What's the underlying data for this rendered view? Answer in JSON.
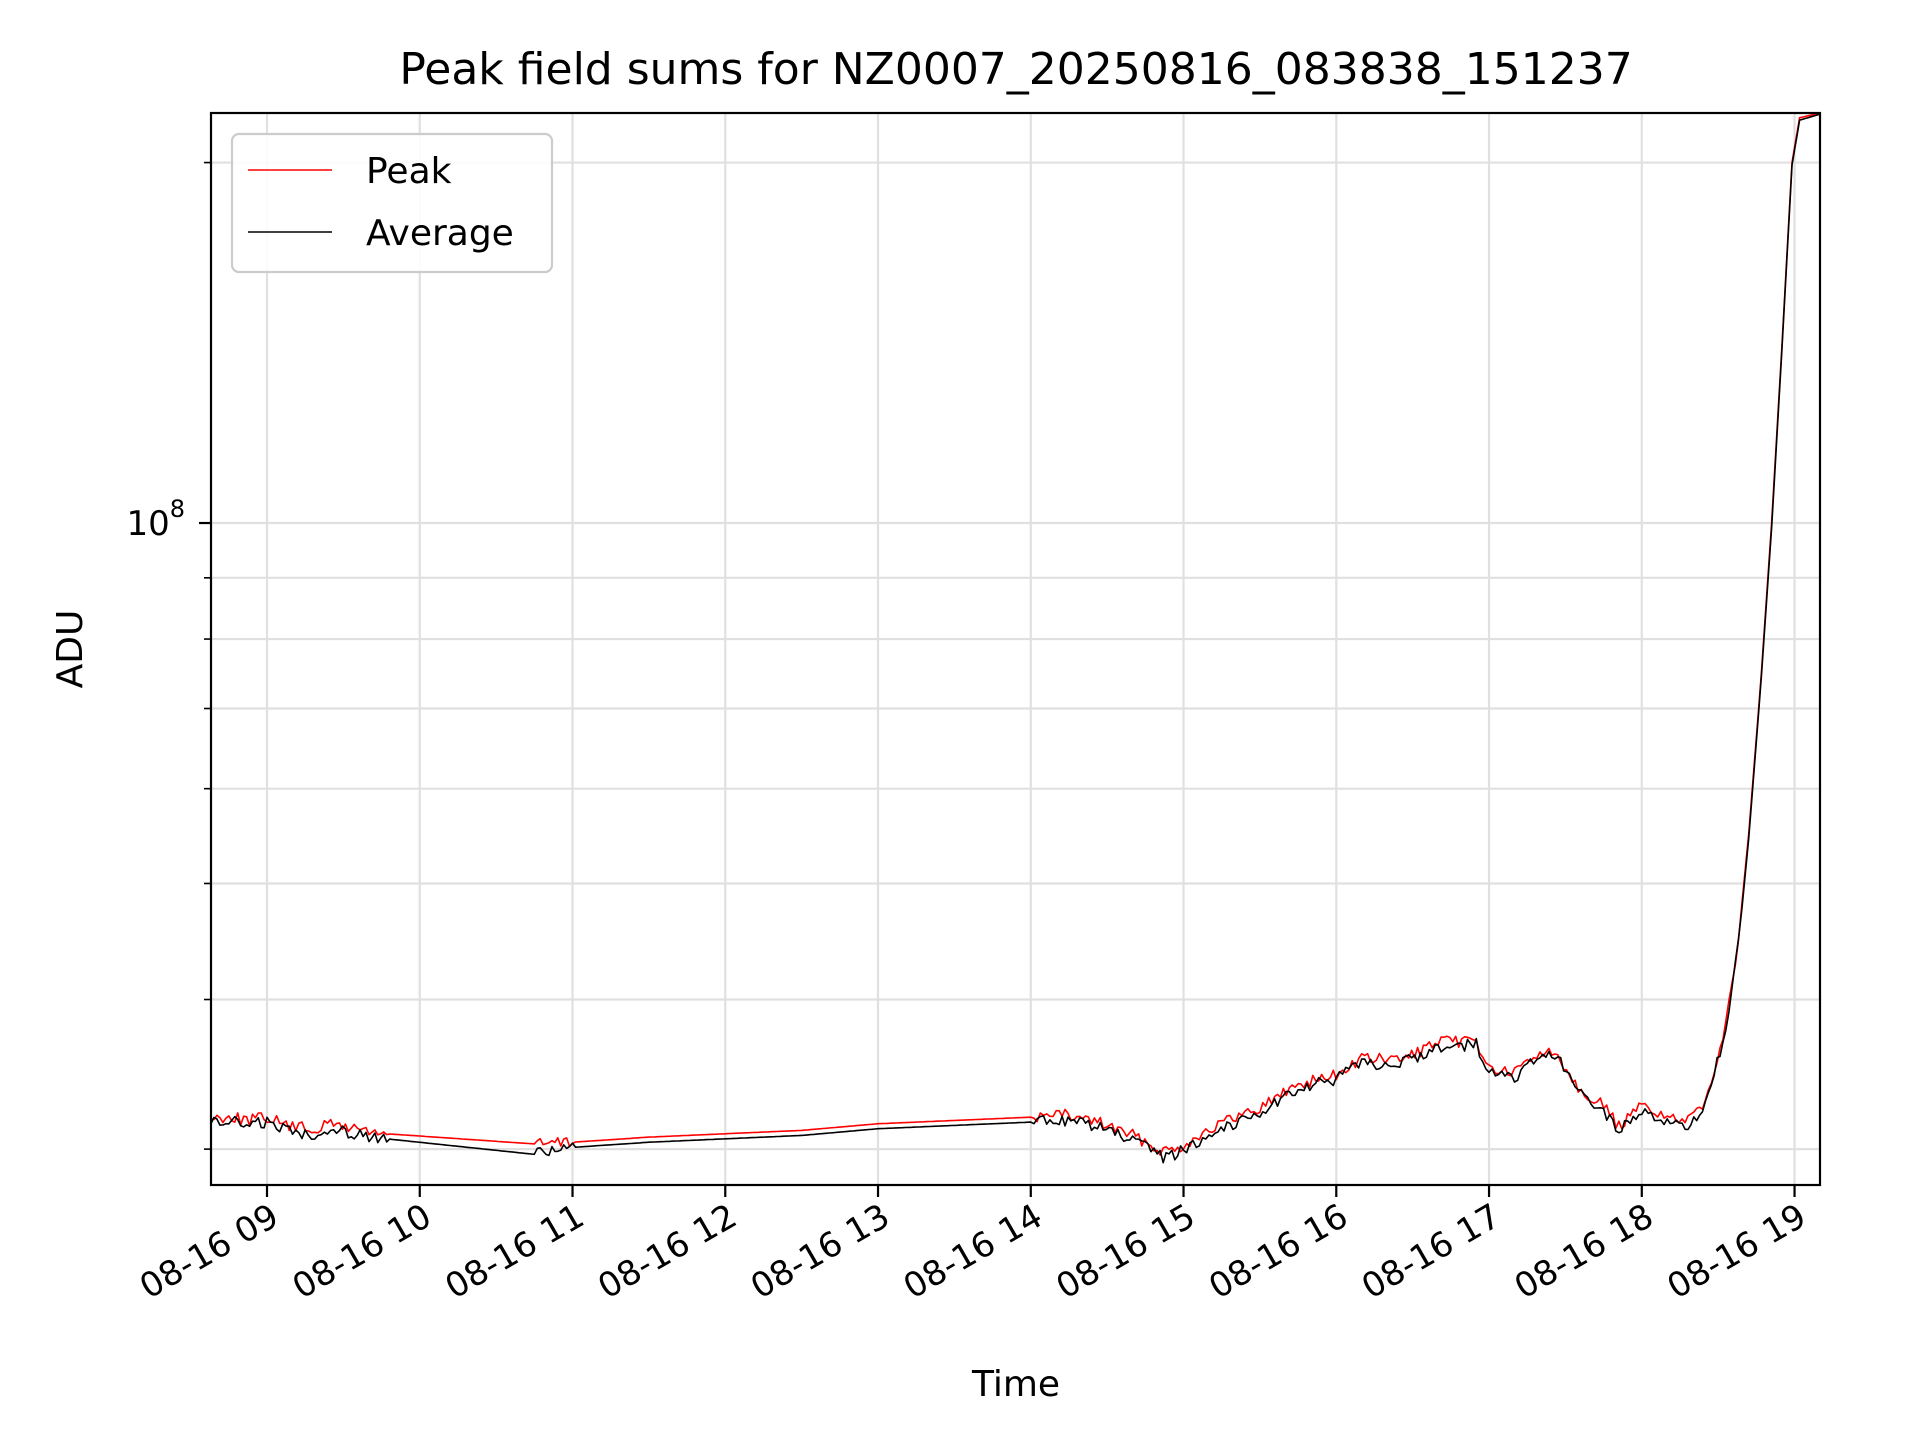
{
  "chart_data": {
    "type": "line",
    "title": "Peak field sums for NZ0007_20250816_083838_151237",
    "xlabel": "Time",
    "ylabel": "ADU",
    "x_scale": "time",
    "y_scale": "log",
    "xlim": [
      "2025-08-16 08:38",
      "2025-08-16 19:10"
    ],
    "ylim": [
      28000000,
      220000000
    ],
    "x_ticks": [
      "08-16 09",
      "08-16 10",
      "08-16 11",
      "08-16 12",
      "08-16 13",
      "08-16 14",
      "08-16 15",
      "08-16 16",
      "08-16 17",
      "08-16 18",
      "08-16 19"
    ],
    "x_tick_times": [
      "2025-08-16 09:00",
      "2025-08-16 10:00",
      "2025-08-16 11:00",
      "2025-08-16 12:00",
      "2025-08-16 13:00",
      "2025-08-16 14:00",
      "2025-08-16 15:00",
      "2025-08-16 16:00",
      "2025-08-16 17:00",
      "2025-08-16 18:00",
      "2025-08-16 19:00"
    ],
    "y_ticks": [
      {
        "value": 100000000,
        "label": "10",
        "exponent": "8"
      }
    ],
    "y_minor_ticks": [
      30000000,
      40000000,
      50000000,
      60000000,
      70000000,
      80000000,
      90000000,
      200000000
    ],
    "grid": true,
    "legend_position": "top-left",
    "series": [
      {
        "name": "Peak",
        "color": "#ff0000",
        "points": [
          [
            "2025-08-16 08:38",
            31800000
          ],
          [
            "2025-08-16 08:45",
            32000000
          ],
          [
            "2025-08-16 08:52",
            31700000
          ],
          [
            "2025-08-16 09:00",
            31900000
          ],
          [
            "2025-08-16 09:10",
            31300000
          ],
          [
            "2025-08-16 09:20",
            31200000
          ],
          [
            "2025-08-16 09:25",
            31500000
          ],
          [
            "2025-08-16 09:47",
            30900000
          ],
          [
            "2025-08-16 10:45",
            30300000
          ],
          [
            "2025-08-16 11:00",
            30400000
          ],
          [
            "2025-08-16 11:30",
            30700000
          ],
          [
            "2025-08-16 12:00",
            30900000
          ],
          [
            "2025-08-16 12:30",
            31100000
          ],
          [
            "2025-08-16 13:00",
            31500000
          ],
          [
            "2025-08-16 13:30",
            31700000
          ],
          [
            "2025-08-16 14:00",
            31900000
          ],
          [
            "2025-08-16 14:10",
            32100000
          ],
          [
            "2025-08-16 14:25",
            31700000
          ],
          [
            "2025-08-16 14:40",
            30800000
          ],
          [
            "2025-08-16 14:52",
            29900000
          ],
          [
            "2025-08-16 15:00",
            30200000
          ],
          [
            "2025-08-16 15:10",
            31200000
          ],
          [
            "2025-08-16 15:30",
            32500000
          ],
          [
            "2025-08-16 15:45",
            34000000
          ],
          [
            "2025-08-16 16:00",
            34600000
          ],
          [
            "2025-08-16 16:10",
            35700000
          ],
          [
            "2025-08-16 16:25",
            35600000
          ],
          [
            "2025-08-16 16:40",
            36800000
          ],
          [
            "2025-08-16 16:55",
            37000000
          ],
          [
            "2025-08-16 17:00",
            35000000
          ],
          [
            "2025-08-16 17:10",
            34700000
          ],
          [
            "2025-08-16 17:20",
            36200000
          ],
          [
            "2025-08-16 17:27",
            36000000
          ],
          [
            "2025-08-16 17:35",
            33800000
          ],
          [
            "2025-08-16 17:45",
            32600000
          ],
          [
            "2025-08-16 17:51",
            31300000
          ],
          [
            "2025-08-16 18:00",
            32600000
          ],
          [
            "2025-08-16 18:10",
            32000000
          ],
          [
            "2025-08-16 18:17",
            31400000
          ],
          [
            "2025-08-16 18:25",
            33000000
          ],
          [
            "2025-08-16 18:33",
            38000000
          ],
          [
            "2025-08-16 18:38",
            45000000
          ],
          [
            "2025-08-16 18:42",
            55000000
          ],
          [
            "2025-08-16 18:47",
            75000000
          ],
          [
            "2025-08-16 18:51",
            100000000
          ],
          [
            "2025-08-16 18:55",
            140000000
          ],
          [
            "2025-08-16 18:59",
            200000000
          ],
          [
            "2025-08-16 19:02",
            218000000
          ],
          [
            "2025-08-16 19:10",
            220000000
          ]
        ]
      },
      {
        "name": "Average",
        "color": "#000000",
        "points": [
          [
            "2025-08-16 08:38",
            31500000
          ],
          [
            "2025-08-16 08:45",
            31700000
          ],
          [
            "2025-08-16 08:52",
            31400000
          ],
          [
            "2025-08-16 09:00",
            31600000
          ],
          [
            "2025-08-16 09:10",
            31000000
          ],
          [
            "2025-08-16 09:20",
            30900000
          ],
          [
            "2025-08-16 09:25",
            31200000
          ],
          [
            "2025-08-16 09:47",
            30600000
          ],
          [
            "2025-08-16 10:45",
            29700000
          ],
          [
            "2025-08-16 11:00",
            30100000
          ],
          [
            "2025-08-16 11:30",
            30400000
          ],
          [
            "2025-08-16 12:00",
            30600000
          ],
          [
            "2025-08-16 12:30",
            30800000
          ],
          [
            "2025-08-16 13:00",
            31200000
          ],
          [
            "2025-08-16 13:30",
            31400000
          ],
          [
            "2025-08-16 14:00",
            31600000
          ],
          [
            "2025-08-16 14:10",
            31800000
          ],
          [
            "2025-08-16 14:25",
            31400000
          ],
          [
            "2025-08-16 14:40",
            30500000
          ],
          [
            "2025-08-16 14:52",
            29500000
          ],
          [
            "2025-08-16 15:00",
            29900000
          ],
          [
            "2025-08-16 15:10",
            30900000
          ],
          [
            "2025-08-16 15:30",
            32200000
          ],
          [
            "2025-08-16 15:45",
            33700000
          ],
          [
            "2025-08-16 16:00",
            34300000
          ],
          [
            "2025-08-16 16:10",
            35400000
          ],
          [
            "2025-08-16 16:25",
            35300000
          ],
          [
            "2025-08-16 16:40",
            36500000
          ],
          [
            "2025-08-16 16:55",
            36700000
          ],
          [
            "2025-08-16 17:00",
            34700000
          ],
          [
            "2025-08-16 17:10",
            34400000
          ],
          [
            "2025-08-16 17:20",
            35900000
          ],
          [
            "2025-08-16 17:27",
            35700000
          ],
          [
            "2025-08-16 17:35",
            33500000
          ],
          [
            "2025-08-16 17:45",
            32300000
          ],
          [
            "2025-08-16 17:51",
            31000000
          ],
          [
            "2025-08-16 18:00",
            32300000
          ],
          [
            "2025-08-16 18:10",
            31700000
          ],
          [
            "2025-08-16 18:17",
            31100000
          ],
          [
            "2025-08-16 18:25",
            32700000
          ],
          [
            "2025-08-16 18:33",
            37500000
          ],
          [
            "2025-08-16 18:38",
            44500000
          ],
          [
            "2025-08-16 18:42",
            54500000
          ],
          [
            "2025-08-16 18:47",
            74500000
          ],
          [
            "2025-08-16 18:51",
            99000000
          ],
          [
            "2025-08-16 18:55",
            139000000
          ],
          [
            "2025-08-16 18:59",
            199000000
          ],
          [
            "2025-08-16 19:02",
            217000000
          ],
          [
            "2025-08-16 19:10",
            219500000
          ]
        ]
      }
    ]
  }
}
